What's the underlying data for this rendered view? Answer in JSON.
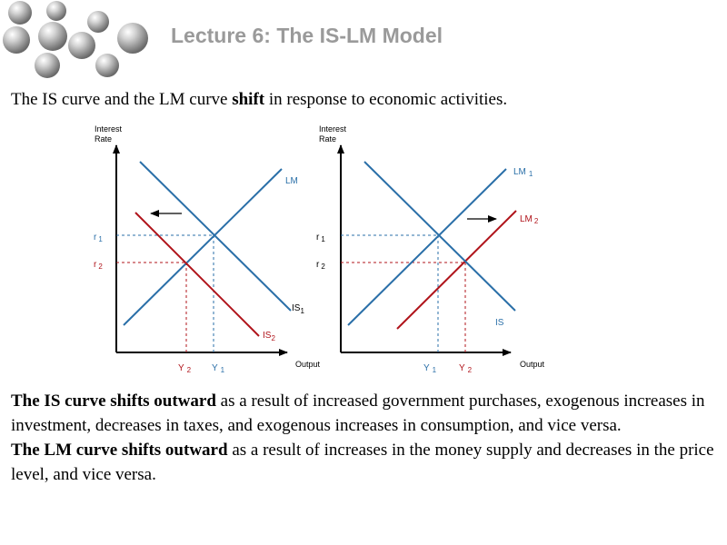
{
  "title": "Lecture 6: The IS-LM Model",
  "intro": {
    "before": "The IS curve and the LM curve ",
    "bold": "shift",
    "after": " in response to economic activities."
  },
  "colors": {
    "blue": "#2a6fa8",
    "red": "#b0141b",
    "title": "#9a9a9a"
  },
  "left_panel": {
    "y_axis_label": [
      "Interest",
      "Rate"
    ],
    "x_axis_label": "Output",
    "lm_label": "LM",
    "is1_label": "IS",
    "is1_sub": "1",
    "is2_label": "IS",
    "is2_sub": "2",
    "r1_label": "r",
    "r1_sub": "1",
    "r2_label": "r",
    "r2_sub": "2",
    "y1_label": "Y",
    "y1_sub": "1",
    "y2_label": "Y",
    "y2_sub": "2",
    "arrow_direction": "left"
  },
  "right_panel": {
    "y_axis_label": [
      "Interest",
      "Rate"
    ],
    "x_axis_label": "Output",
    "lm1_label": "LM",
    "lm1_sub": "1",
    "lm2_label": "LM",
    "lm2_sub": "2",
    "is_label": "IS",
    "r1_label": "r",
    "r1_sub": "1",
    "r2_label": "r",
    "r2_sub": "2",
    "y1_label": "Y",
    "y1_sub": "1",
    "y2_label": "Y",
    "y2_sub": "2",
    "arrow_direction": "right"
  },
  "paragraphs": [
    {
      "bold": "The IS curve shifts outward",
      "rest": " as a result of increased government purchases, exogenous increases in investment, decreases in taxes, and exogenous increases in consumption, and vice versa."
    },
    {
      "bold": "The LM curve shifts outward",
      "rest": " as a result of increases in the money supply and decreases in the price level, and vice versa."
    }
  ]
}
